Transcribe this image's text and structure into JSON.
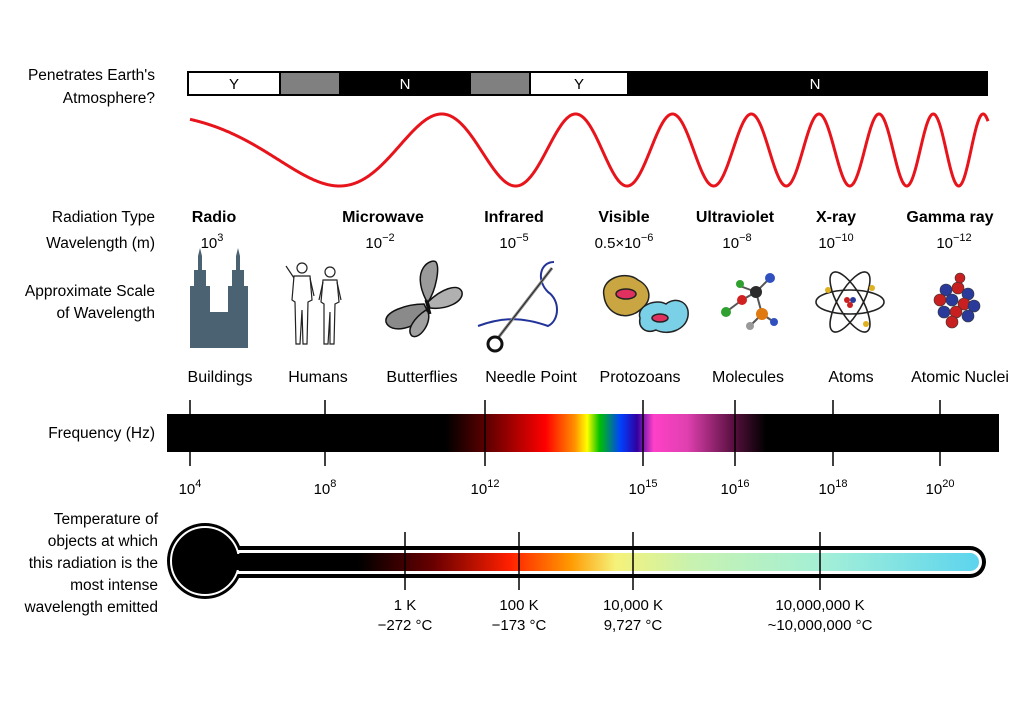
{
  "rows": {
    "atmosphere_label": [
      "Penetrates Earth's",
      "Atmosphere?"
    ],
    "radiation_type_label": "Radiation Type",
    "wavelength_label": "Wavelength (m)",
    "scale_label": [
      "Approximate Scale",
      "of Wavelength"
    ],
    "frequency_label": "Frequency (Hz)",
    "temperature_label": [
      "Temperature of",
      "objects at which",
      "this radiation is the",
      "most intense",
      "wavelength emitted"
    ]
  },
  "atmosphere_bar": [
    {
      "label": "Y",
      "state": "yes",
      "color": "#ffffff"
    },
    {
      "label": "",
      "state": "partial",
      "color": "#808080"
    },
    {
      "label": "N",
      "state": "no",
      "color": "#000000"
    },
    {
      "label": "",
      "state": "partial",
      "color": "#808080"
    },
    {
      "label": "Y",
      "state": "yes",
      "color": "#ffffff"
    },
    {
      "label": "N",
      "state": "no",
      "color": "#000000"
    }
  ],
  "wave_color": "#e8141c",
  "radiation_types": [
    {
      "name": "Radio",
      "wl_base": "10",
      "wl_exp": "3",
      "object": "Buildings",
      "icon": "skyscraper-icon"
    },
    {
      "name": "Microwave",
      "wl_base": "10",
      "wl_exp": "−2",
      "object": "Humans",
      "icon": "humans-icon"
    },
    {
      "name": "Infrared",
      "wl_base": "10",
      "wl_exp": "−5",
      "object": "Butterflies",
      "icon": "butterfly-icon"
    },
    {
      "name": "Visible",
      "wl_base": "0.5×10",
      "wl_exp": "−6",
      "object": "Needle Point",
      "icon": "needle-icon"
    },
    {
      "name": "Ultraviolet",
      "wl_base": "10",
      "wl_exp": "−8",
      "object": "Protozoans",
      "icon": "protozoan-icon"
    },
    {
      "name": "X-ray",
      "wl_base": "10",
      "wl_exp": "−10",
      "object": "Molecules",
      "icon": "molecule-icon"
    },
    {
      "name": "Gamma ray",
      "wl_base": "10",
      "wl_exp": "−12",
      "object": "Atoms",
      "icon": "atom-icon"
    },
    {
      "name": "",
      "wl_base": "",
      "wl_exp": "",
      "object": "Atomic Nuclei",
      "icon": "nucleus-icon"
    }
  ],
  "frequency_ticks": [
    {
      "base": "10",
      "exp": "4"
    },
    {
      "base": "10",
      "exp": "8"
    },
    {
      "base": "10",
      "exp": "12"
    },
    {
      "base": "10",
      "exp": "15"
    },
    {
      "base": "10",
      "exp": "16"
    },
    {
      "base": "10",
      "exp": "18"
    },
    {
      "base": "10",
      "exp": "20"
    }
  ],
  "temperature_ticks": [
    {
      "kelvin": "1 K",
      "celsius": "−272 °C"
    },
    {
      "kelvin": "100 K",
      "celsius": "−173 °C"
    },
    {
      "kelvin": "10,000 K",
      "celsius": "9,727 °C"
    },
    {
      "kelvin": "10,000,000 K",
      "celsius": "~10,000,000 °C"
    }
  ],
  "spectrum_colors": [
    "#000000",
    "#8b0000",
    "#ff0000",
    "#ffa500",
    "#ffff00",
    "#00c000",
    "#0050ff",
    "#4b00a0",
    "#ff44cc",
    "#ff66cc",
    "#000000"
  ],
  "thermometer_colors": [
    "#000000",
    "#8b0000",
    "#ff2a00",
    "#ffa000",
    "#f5f57a",
    "#c8f5b4",
    "#a0f0d2",
    "#62d6ec"
  ]
}
